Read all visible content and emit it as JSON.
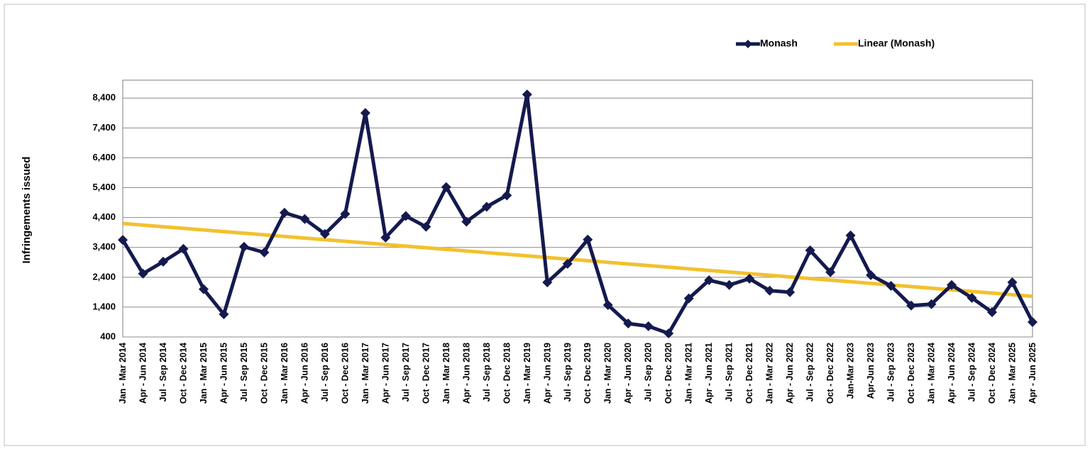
{
  "chart_data": {
    "type": "line",
    "y_label": "Infringements issued",
    "categories": [
      "Jan - Mar 2014",
      "Apr - Jun 2014",
      "Jul - Sep 2014",
      "Oct - Dec 2014",
      "Jan - Mar 2015",
      "Apr - Jun 2015",
      "Jul - Sep 2015",
      "Oct - Dec 2015",
      "Jan - Mar 2016",
      "Apr - Jun 2016",
      "Jul - Sep 2016",
      "Oct - Dec 2016",
      "Jan - Mar 2017",
      "Apr - Jun 2017",
      "Jul - Sep 2017",
      "Oct - Dec 2017",
      "Jan - Mar 2018",
      "Apr - Jun 2018",
      "Jul - Sep 2018",
      "Oct - Dec 2018",
      "Jan - Mar 2019",
      "Apr - Jun 2019",
      "Jul - Sep 2019",
      "Oct - Dec 2019",
      "Jan - Mar 2020",
      "Apr - Jun 2020",
      "Jul - Sep 2020",
      "Oct - Dec 2020",
      "Jan - Mar 2021",
      "Apr - Jun 2021",
      "Jul - Sep 2021",
      "Oct - Dec 2021",
      "Jan - Mar 2022",
      "Apr - Jun 2022",
      "Jul - Sep 2022",
      "Oct - Dec 2022",
      "Jan-Mar 2023",
      "Apr-Jun 2023",
      "Jul - Sep 2023",
      "Oct - Dec 2023",
      "Jan - Mar 2024",
      "Apr - Jun 2024",
      "Jul - Sep 2024",
      "Oct - Dec 2024",
      "Jan - Mar 2025",
      "Apr - Jun 2025"
    ],
    "series": [
      {
        "name": "Monash",
        "color": "#141a4e",
        "markers": true,
        "values": [
          3650,
          2520,
          2920,
          3350,
          2000,
          1160,
          3420,
          3230,
          4560,
          4350,
          3850,
          4520,
          7900,
          3730,
          4450,
          4090,
          5420,
          4260,
          4760,
          5140,
          8520,
          2230,
          2850,
          3660,
          1470,
          850,
          760,
          520,
          1690,
          2300,
          2140,
          2350,
          1950,
          1900,
          3300,
          2570,
          3800,
          2470,
          2110,
          1450,
          1500,
          2140,
          1710,
          1230,
          2230,
          900
        ]
      },
      {
        "name": "Linear (Monash)",
        "color": "#f2c12e",
        "markers": false,
        "values": [
          4200,
          4146,
          4092,
          4037,
          3983,
          3929,
          3875,
          3821,
          3766,
          3712,
          3658,
          3604,
          3550,
          3495,
          3441,
          3387,
          3333,
          3279,
          3224,
          3170,
          3116,
          3062,
          3008,
          2953,
          2899,
          2845,
          2791,
          2737,
          2682,
          2628,
          2574,
          2520,
          2466,
          2411,
          2357,
          2303,
          2249,
          2195,
          2140,
          2086,
          2032,
          1978,
          1924,
          1869,
          1815,
          1761
        ]
      }
    ],
    "ylim": [
      400,
      9000
    ],
    "yticks": [
      {
        "value": 400,
        "label": "400"
      },
      {
        "value": 1400,
        "label": "1,400"
      },
      {
        "value": 2400,
        "label": "2,400"
      },
      {
        "value": 3400,
        "label": "3,400"
      },
      {
        "value": 4400,
        "label": "4,400"
      },
      {
        "value": 5400,
        "label": "5,400"
      },
      {
        "value": 6400,
        "label": "6,400"
      },
      {
        "value": 7400,
        "label": "7,400"
      },
      {
        "value": 8400,
        "label": "8,400"
      }
    ],
    "grid": true,
    "legend": "top-right"
  }
}
